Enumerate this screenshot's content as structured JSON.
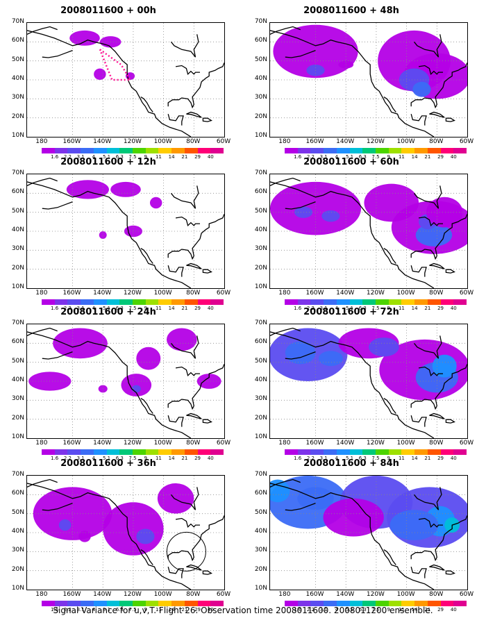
{
  "footer": "Signal Variance for u,v,T. Flight 26. Observation time 2008011600. 2008011200 ensemble.",
  "lat_labels": [
    "70N",
    "60N",
    "50N",
    "40N",
    "30N",
    "20N",
    "10N"
  ],
  "lon_labels": [
    "180",
    "160W",
    "140W",
    "120W",
    "100W",
    "80W",
    "60W"
  ],
  "colorbar": {
    "labels": [
      "1.6",
      "2.2",
      "3.1",
      "4",
      "5.1",
      "6.3",
      "7.5",
      "9",
      "11",
      "14",
      "21",
      "29",
      "40"
    ],
    "colors": [
      "#b400e6",
      "#7d33ea",
      "#5b4cf0",
      "#3b6cf5",
      "#1e90ff",
      "#00bfd8",
      "#00c878",
      "#4cd400",
      "#9ee000",
      "#ffcc00",
      "#ff9900",
      "#ff5500",
      "#ff0077",
      "#e00090"
    ]
  },
  "panels": [
    {
      "title": "2008011600 + 00h",
      "intensity": 0
    },
    {
      "title": "2008011600 + 12h",
      "intensity": 1
    },
    {
      "title": "2008011600 + 24h",
      "intensity": 2
    },
    {
      "title": "2008011600 + 36h",
      "intensity": 3
    },
    {
      "title": "2008011600 + 48h",
      "intensity": 4
    },
    {
      "title": "2008011600 + 60h",
      "intensity": 5
    },
    {
      "title": "2008011600 + 72h",
      "intensity": 6
    },
    {
      "title": "2008011600 + 84h",
      "intensity": 7
    }
  ]
}
